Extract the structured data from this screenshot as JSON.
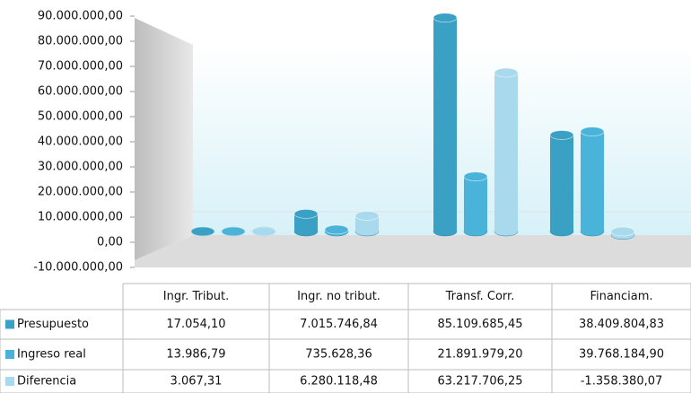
{
  "chart_data": {
    "type": "bar",
    "categories": [
      "Ingr. Tribut.",
      "Ingr. no tribut.",
      "Transf. Corr.",
      "Financiam."
    ],
    "series": [
      {
        "name": "Presupuesto",
        "color": "#3aa0c4",
        "values": [
          17054.1,
          7015746.84,
          85109685.45,
          38409804.83
        ],
        "value_labels": [
          "17.054,10",
          "7.015.746,84",
          "85.109.685,45",
          "38.409.804,83"
        ]
      },
      {
        "name": "Ingreso real",
        "color": "#4ab3d9",
        "values": [
          13986.79,
          735628.36,
          21891979.2,
          39768184.9
        ],
        "value_labels": [
          "13.986,79",
          "735.628,36",
          "21.891.979,20",
          "39.768.184,90"
        ]
      },
      {
        "name": "Diferencia",
        "color": "#a9d9ec",
        "values": [
          3067.31,
          6280118.48,
          63217706.25,
          -1358380.07
        ],
        "value_labels": [
          "3.067,31",
          "6.280.118,48",
          "63.217.706,25",
          "-1.358.380,07"
        ]
      }
    ],
    "ylim": [
      -10000000,
      90000000
    ],
    "yticks": [
      {
        "value": 90000000,
        "label": "90.000.000,00"
      },
      {
        "value": 80000000,
        "label": "80.000.000,00"
      },
      {
        "value": 70000000,
        "label": "70.000.000,00"
      },
      {
        "value": 60000000,
        "label": "60.000.000,00"
      },
      {
        "value": 50000000,
        "label": "50.000.000,00"
      },
      {
        "value": 40000000,
        "label": "40.000.000,00"
      },
      {
        "value": 30000000,
        "label": "30.000.000,00"
      },
      {
        "value": 20000000,
        "label": "20.000.000,00"
      },
      {
        "value": 10000000,
        "label": "10.000.000,00"
      },
      {
        "value": 0,
        "label": "0,00"
      },
      {
        "value": -10000000,
        "label": "-10.000.000,00"
      }
    ],
    "grid": false
  }
}
